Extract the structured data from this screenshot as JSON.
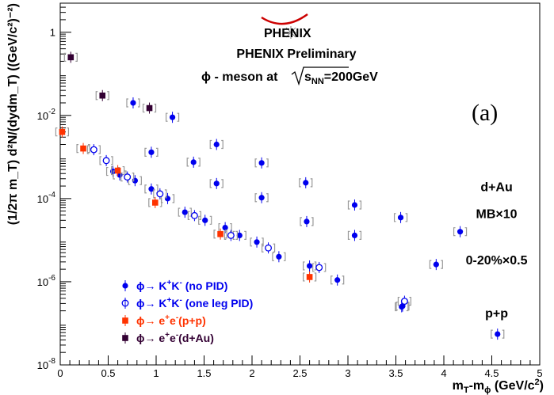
{
  "chart_data": {
    "type": "scatter",
    "title": "PHENIX Preliminary",
    "logo_text": "PHENIX",
    "subtitle": {
      "prefix": "ϕ - meson at",
      "s_symbol": "s",
      "s_subscript": "NN",
      "suffix": "=200GeV"
    },
    "panel_label": "(a)",
    "xlabel": {
      "main": "m",
      "sub1": "T",
      "mid": "-m",
      "sub2": "ϕ",
      "unit": " (GeV/c",
      "sup": "2",
      "close": ")"
    },
    "ylabel": "(1/2π m_T) d²N/(dydm_T) ((GeV/c²)⁻²)",
    "xlim": [
      0,
      5
    ],
    "ylim": [
      1e-08,
      5
    ],
    "yscale": "log",
    "x_ticks": [
      "0",
      "0.5",
      "1",
      "1.5",
      "2",
      "2.5",
      "3",
      "3.5",
      "4",
      "4.5",
      "5"
    ],
    "y_ticks": [
      {
        "base": "10",
        "exp": "-8",
        "value": 1e-08
      },
      {
        "base": "10",
        "exp": "-6",
        "value": 1e-06
      },
      {
        "base": "10",
        "exp": "-4",
        "value": 0.0001
      },
      {
        "base": "10",
        "exp": "-2",
        "value": 0.01
      },
      {
        "base": "1",
        "exp": "",
        "value": 1
      }
    ],
    "annotations": [
      {
        "text": "d+Au",
        "x": 4.55,
        "y": 0.00015
      },
      {
        "text": "MB×10",
        "x": 4.55,
        "y": 3.4e-05
      },
      {
        "text": "0-20%×0.5",
        "x": 4.55,
        "y": 2.6e-06
      },
      {
        "text": "p+p",
        "x": 4.55,
        "y": 1.4e-07
      }
    ],
    "legend": [
      {
        "marker": "filled-circle",
        "color": "#0000ee",
        "prefix": "ϕ→ K",
        "sup1": "+",
        "mid": "K",
        "sup2": "-",
        "suffix": " (no PID)"
      },
      {
        "marker": "open-circle",
        "color": "#0000ee",
        "prefix": "ϕ→ K",
        "sup1": "+",
        "mid": "K",
        "sup2": "-",
        "suffix": " (one leg PID)"
      },
      {
        "marker": "filled-square",
        "color": "#ff3300",
        "prefix": "ϕ→ e",
        "sup1": "+",
        "mid": "e",
        "sup2": "-",
        "suffix": "(p+p)"
      },
      {
        "marker": "filled-square",
        "color": "#330033",
        "prefix": "ϕ→ e",
        "sup1": "+",
        "mid": "e",
        "sup2": "-",
        "suffix": "(d+Au)"
      }
    ],
    "series": [
      {
        "name": "phi->K+K- (no PID), d+Au MB x10",
        "marker": "filled-circle",
        "color": "#0000ee",
        "points": [
          [
            0.76,
            0.02
          ],
          [
            1.17,
            0.009
          ],
          [
            1.63,
            0.002
          ],
          [
            2.1,
            0.00072
          ],
          [
            2.56,
            0.00024
          ],
          [
            3.07,
            7e-05
          ],
          [
            3.55,
            3.5e-05
          ],
          [
            4.17,
            1.6e-05
          ]
        ]
      },
      {
        "name": "phi->K+K- (no PID), d+Au 0-20% x0.5",
        "marker": "filled-circle",
        "color": "#0000ee",
        "points": [
          [
            0.95,
            0.0013
          ],
          [
            1.39,
            0.00075
          ],
          [
            1.63,
            0.00023
          ],
          [
            2.1,
            0.000105
          ],
          [
            2.57,
            2.8e-05
          ],
          [
            3.07,
            1.3e-05
          ],
          [
            3.92,
            2.6e-06
          ],
          [
            3.57,
            2.6e-07
          ],
          [
            4.56,
            5.5e-08
          ]
        ]
      },
      {
        "name": "phi->K+K- (no PID), p+p",
        "marker": "filled-circle",
        "color": "#0000ee",
        "points": [
          [
            0.55,
            0.00045
          ],
          [
            0.62,
            0.00037
          ],
          [
            0.78,
            0.00027
          ],
          [
            0.95,
            0.00017
          ],
          [
            1.12,
            0.0001
          ],
          [
            1.3,
            4.7e-05
          ],
          [
            1.51,
            3e-05
          ],
          [
            1.72,
            2e-05
          ],
          [
            1.87,
            1.3e-05
          ],
          [
            2.05,
            9e-06
          ],
          [
            2.28,
            4e-06
          ],
          [
            2.6,
            2.4e-06
          ],
          [
            2.89,
            1.1e-06
          ],
          [
            3.56,
            2.5e-07
          ]
        ]
      },
      {
        "name": "phi->K+K- (one leg PID), p+p",
        "marker": "open-circle",
        "color": "#0000ee",
        "points": [
          [
            0.35,
            0.0015
          ],
          [
            0.48,
            0.00082
          ],
          [
            0.7,
            0.00033
          ],
          [
            1.04,
            0.00013
          ],
          [
            1.4,
            3.9e-05
          ],
          [
            1.78,
            1.3e-05
          ],
          [
            2.17,
            6.5e-06
          ],
          [
            2.7,
            2.2e-06
          ],
          [
            3.59,
            3.4e-07
          ]
        ]
      },
      {
        "name": "phi->e+e- (p+p)",
        "marker": "filled-square",
        "color": "#ff3300",
        "points": [
          [
            0.02,
            0.004
          ],
          [
            0.24,
            0.0016
          ],
          [
            0.6,
            0.00047
          ],
          [
            0.99,
            8e-05
          ],
          [
            1.67,
            1.4e-05
          ],
          [
            2.6,
            1.3e-06
          ]
        ]
      },
      {
        "name": "phi->e+e- (d+Au)",
        "marker": "filled-square",
        "color": "#330033",
        "points": [
          [
            0.11,
            0.25
          ],
          [
            0.44,
            0.03
          ],
          [
            0.93,
            0.015
          ]
        ]
      }
    ]
  }
}
